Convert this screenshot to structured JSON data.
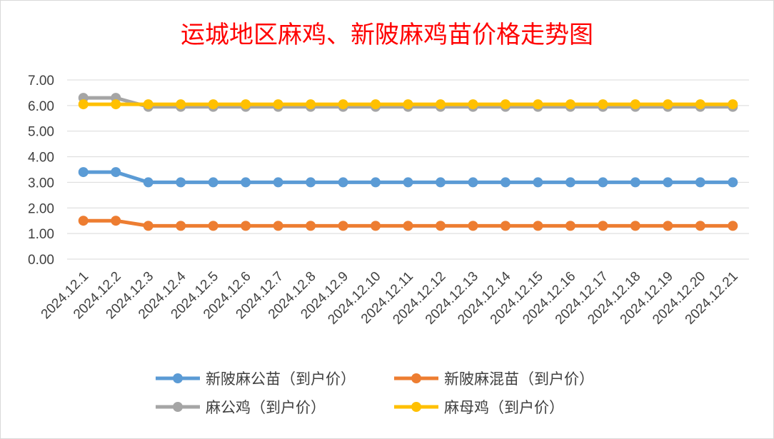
{
  "chart_data": {
    "type": "line",
    "title": "运城地区麻鸡、新陂麻鸡苗价格走势图",
    "xlabel": "",
    "ylabel": "",
    "ylim": [
      0,
      7
    ],
    "yticks": [
      "0.00",
      "1.00",
      "2.00",
      "3.00",
      "4.00",
      "5.00",
      "6.00",
      "7.00"
    ],
    "grid": true,
    "legend_position": "bottom",
    "categories": [
      "2024.12.1",
      "2024.12.2",
      "2024.12.3",
      "2024.12.4",
      "2024.12.5",
      "2024.12.6",
      "2024.12.7",
      "2024.12.8",
      "2024.12.9",
      "2024.12.10",
      "2024.12.11",
      "2024.12.12",
      "2024.12.13",
      "2024.12.14",
      "2024.12.15",
      "2024.12.16",
      "2024.12.17",
      "2024.12.18",
      "2024.12.19",
      "2024.12.20",
      "2024.12.21"
    ],
    "series": [
      {
        "name": "新陂麻公苗（到户价）",
        "color": "#5b9bd5",
        "values": [
          3.4,
          3.4,
          3.0,
          3.0,
          3.0,
          3.0,
          3.0,
          3.0,
          3.0,
          3.0,
          3.0,
          3.0,
          3.0,
          3.0,
          3.0,
          3.0,
          3.0,
          3.0,
          3.0,
          3.0,
          3.0
        ]
      },
      {
        "name": "新陂麻混苗（到户价）",
        "color": "#ed7d31",
        "values": [
          1.5,
          1.5,
          1.3,
          1.3,
          1.3,
          1.3,
          1.3,
          1.3,
          1.3,
          1.3,
          1.3,
          1.3,
          1.3,
          1.3,
          1.3,
          1.3,
          1.3,
          1.3,
          1.3,
          1.3,
          1.3
        ]
      },
      {
        "name": "麻公鸡（到户价）",
        "color": "#a5a5a5",
        "values": [
          6.3,
          6.3,
          5.95,
          5.95,
          5.95,
          5.95,
          5.95,
          5.95,
          5.95,
          5.95,
          5.95,
          5.95,
          5.95,
          5.95,
          5.95,
          5.95,
          5.95,
          5.95,
          5.95,
          5.95,
          5.95
        ]
      },
      {
        "name": "麻母鸡（到户价）",
        "color": "#ffc000",
        "values": [
          6.05,
          6.05,
          6.05,
          6.05,
          6.05,
          6.05,
          6.05,
          6.05,
          6.05,
          6.05,
          6.05,
          6.05,
          6.05,
          6.05,
          6.05,
          6.05,
          6.05,
          6.05,
          6.05,
          6.05,
          6.05
        ]
      }
    ]
  }
}
